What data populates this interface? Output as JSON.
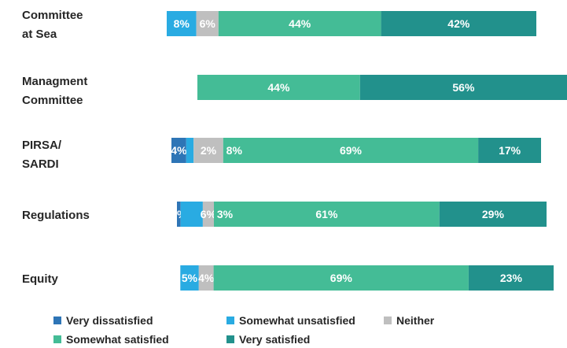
{
  "chart_data": {
    "type": "bar",
    "orientation": "horizontal",
    "stacked": true,
    "title": "",
    "categories": [
      "Committee\nat Sea",
      "Managment\nCommittee",
      "PIRSA/\nSARDI",
      "Regulations",
      "Equity"
    ],
    "series": [
      {
        "name": "Very dissatisfied",
        "color": "#2E75B6",
        "values": [
          0,
          0,
          4,
          1,
          0
        ]
      },
      {
        "name": "Somewhat unsatisfied",
        "color": "#29ABE2",
        "values": [
          8,
          0,
          2,
          6,
          5
        ]
      },
      {
        "name": "Neither",
        "color": "#BFBFBF",
        "values": [
          6,
          0,
          8,
          3,
          4
        ]
      },
      {
        "name": "Somewhat satisfied",
        "color": "#44BC96",
        "values": [
          44,
          44,
          69,
          61,
          69
        ]
      },
      {
        "name": "Very satisfied",
        "color": "#22918C",
        "values": [
          42,
          56,
          17,
          29,
          23
        ]
      }
    ],
    "segment_labels": [
      [
        "",
        "8%",
        "6%",
        "44%",
        "42%"
      ],
      [
        "",
        "",
        "",
        "44%",
        "56%"
      ],
      [
        "4%",
        "",
        "2%",
        "69%",
        "17%"
      ],
      [
        "1%",
        "",
        "6%",
        "61%",
        "29%"
      ],
      [
        "",
        "5%",
        "4%",
        "69%",
        "23%"
      ]
    ],
    "mid_labels": [
      "",
      "",
      "8%",
      "3%",
      ""
    ],
    "legend_position": "bottom",
    "grid": false
  }
}
